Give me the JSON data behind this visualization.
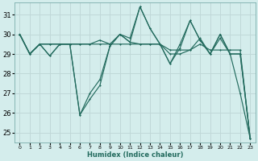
{
  "xlabel": "Humidex (Indice chaleur)",
  "background_color": "#d4edec",
  "grid_color": "#c0d8d8",
  "line_color": "#236b5e",
  "x_ticks": [
    0,
    1,
    2,
    3,
    4,
    5,
    6,
    7,
    8,
    9,
    10,
    11,
    12,
    13,
    14,
    15,
    16,
    17,
    18,
    19,
    20,
    21,
    22,
    23
  ],
  "y_ticks": [
    25,
    26,
    27,
    28,
    29,
    30,
    31
  ],
  "ylim": [
    24.5,
    31.6
  ],
  "xlim": [
    -0.5,
    23.5
  ],
  "line1": [
    30.0,
    29.0,
    29.5,
    29.5,
    29.5,
    29.5,
    29.5,
    29.5,
    29.5,
    29.5,
    29.5,
    29.5,
    29.5,
    29.5,
    29.5,
    29.2,
    29.2,
    29.2,
    29.5,
    29.2,
    29.2,
    29.2,
    29.2,
    24.7
  ],
  "line2": [
    30.0,
    29.0,
    29.5,
    29.5,
    29.5,
    29.5,
    29.5,
    29.5,
    29.7,
    29.5,
    30.0,
    29.6,
    29.5,
    29.5,
    29.5,
    29.0,
    29.0,
    29.2,
    29.8,
    29.0,
    29.8,
    29.0,
    29.0,
    24.7
  ],
  "line3": [
    30.0,
    29.0,
    29.5,
    28.9,
    29.5,
    29.5,
    25.9,
    26.7,
    27.4,
    29.4,
    30.0,
    29.6,
    31.4,
    30.3,
    29.5,
    28.5,
    29.3,
    30.7,
    29.7,
    29.0,
    30.0,
    29.0,
    27.0,
    24.7
  ],
  "line4": [
    30.0,
    29.0,
    29.5,
    28.9,
    29.5,
    29.5,
    25.9,
    27.0,
    27.7,
    29.4,
    30.0,
    29.8,
    31.4,
    30.3,
    29.5,
    28.5,
    29.5,
    30.7,
    29.7,
    29.0,
    30.0,
    29.0,
    29.0,
    24.7
  ]
}
